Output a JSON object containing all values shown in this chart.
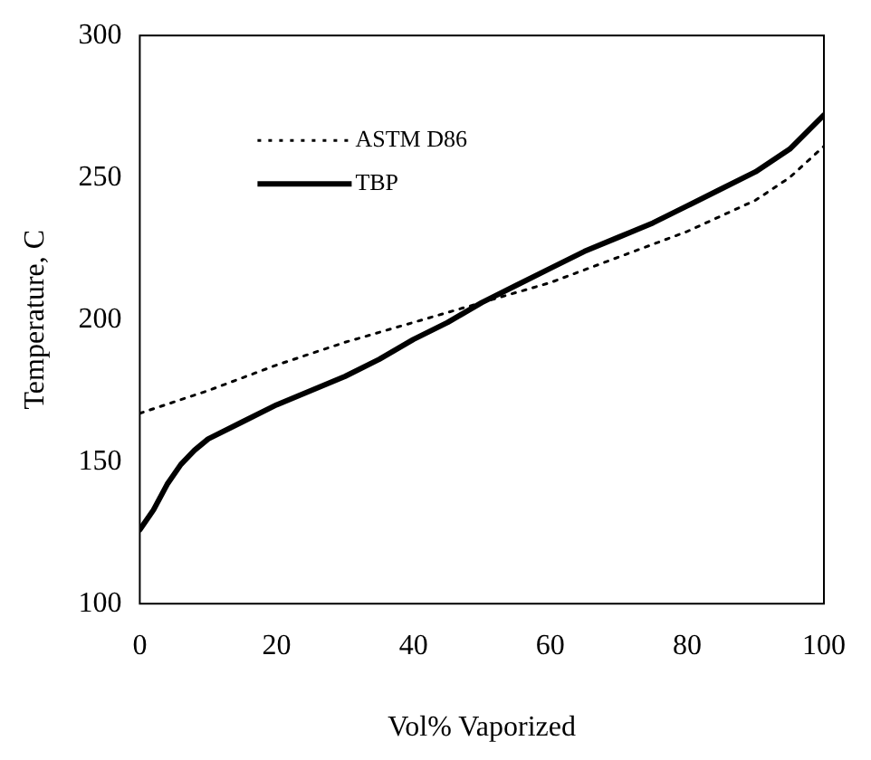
{
  "chart_data": {
    "type": "line",
    "xlabel": "Vol% Vaporized",
    "ylabel": "Temperature, C",
    "xlim": [
      0,
      100
    ],
    "xticks": [
      0,
      20,
      40,
      60,
      80,
      100
    ],
    "ylim": [
      100,
      300
    ],
    "yticks": [
      100,
      150,
      200,
      250,
      300
    ],
    "grid": false,
    "legend": "top left",
    "marker": "none",
    "series": [
      {
        "name": "ASTM D86",
        "color": "#000000",
        "line_style": "dotted",
        "x": [
          0,
          10,
          20,
          30,
          40,
          50,
          60,
          70,
          80,
          90,
          95,
          100
        ],
        "values": [
          167,
          175,
          184,
          192,
          199,
          206,
          213,
          222,
          231,
          242,
          250,
          261
        ]
      },
      {
        "name": "TBP",
        "color": "#000000",
        "line_style": "solid",
        "x": [
          0,
          2,
          4,
          6,
          8,
          10,
          15,
          20,
          25,
          30,
          35,
          40,
          45,
          50,
          55,
          60,
          65,
          70,
          75,
          80,
          85,
          90,
          95,
          100
        ],
        "values": [
          126,
          133,
          142,
          149,
          154,
          158,
          164,
          170,
          175,
          180,
          186,
          193,
          199,
          206,
          212,
          218,
          224,
          229,
          234,
          240,
          246,
          252,
          260,
          272
        ]
      }
    ]
  }
}
